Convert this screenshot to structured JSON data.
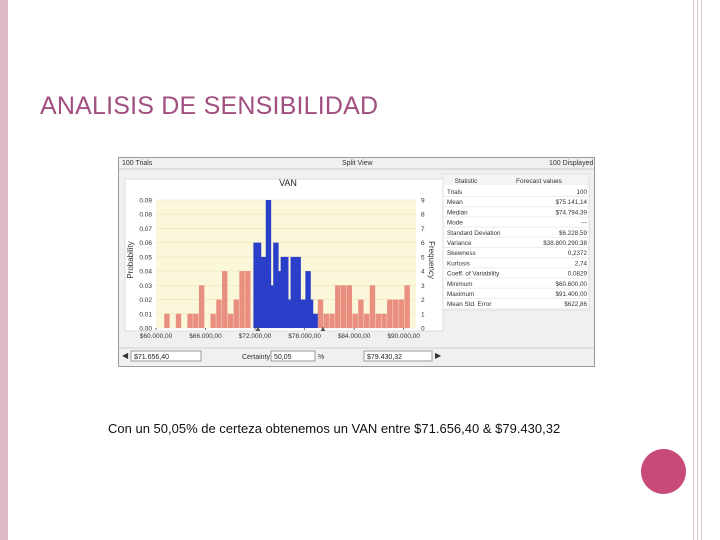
{
  "slide": {
    "title": "ANALISIS DE SENSIBILIDAD",
    "caption": "Con un  50,05%  de certeza obtenemos un VAN entre $71.656,40 & $79.430,32"
  },
  "window": {
    "trials_label": "100 Trials",
    "view_label": "Split View",
    "displayed_label": "100 Displayed",
    "certainty_label": "Certainty",
    "certainty_value": "50,05",
    "percent_sign": "%",
    "left_value": "$71.656,40",
    "right_value": "$79.430,32"
  },
  "stats_table": {
    "headers": [
      "Statistic",
      "Forecast values"
    ],
    "rows": [
      [
        "Trials",
        "100"
      ],
      [
        "Mean",
        "$75.141,14"
      ],
      [
        "Median",
        "$74.794,39"
      ],
      [
        "Mode",
        "---"
      ],
      [
        "Standard Deviation",
        "$6.228,59"
      ],
      [
        "Variance",
        "$38.800.290,38"
      ],
      [
        "Skewness",
        "0,2372"
      ],
      [
        "Kurtosis",
        "2,74"
      ],
      [
        "Coeff. of Variability",
        "0,0829"
      ],
      [
        "Minimum",
        "$60.600,00"
      ],
      [
        "Maximum",
        "$91.400,00"
      ],
      [
        "Mean Std. Error",
        "$622,86"
      ]
    ]
  },
  "chart_data": {
    "type": "bar",
    "title": "VAN",
    "ylabel": "Probability",
    "y2label": "Frequency",
    "ylim": [
      0,
      0.09
    ],
    "y_ticks": [
      "0.00",
      "0.01",
      "0.02",
      "0.03",
      "0.04",
      "0.05",
      "0.06",
      "0.07",
      "0.08",
      "0.09"
    ],
    "y2_ticks": [
      "0",
      "1",
      "2",
      "3",
      "4",
      "5",
      "6",
      "7",
      "8",
      "9"
    ],
    "x_ticks": [
      "$60.000,00",
      "$66.000,00",
      "$72.000,00",
      "$78.000,00",
      "$84.000,00",
      "$90.000,00"
    ],
    "xlim": [
      60000,
      91500
    ],
    "bin_width": 700,
    "certainty_range": [
      71656.4,
      79430.32
    ],
    "grid": true,
    "bins_start": [
      61000,
      62400,
      63800,
      64500,
      65200,
      66600,
      67300,
      68000,
      68700,
      69400,
      70100,
      70800,
      71800,
      72100,
      72400,
      72700,
      73000,
      73300,
      73600,
      73900,
      74200,
      74500,
      74800,
      75100,
      75400,
      75700,
      76000,
      76300,
      76600,
      76900,
      77200,
      77500,
      77800,
      78100,
      78400,
      78700,
      79000,
      79600,
      80300,
      81000,
      81700,
      82400,
      83100,
      83800,
      84500,
      85200,
      85900,
      86600,
      87300,
      88000,
      88700,
      89400,
      90100
    ],
    "values": [
      0.01,
      0.01,
      0.01,
      0.01,
      0.03,
      0.01,
      0.02,
      0.04,
      0.01,
      0.02,
      0.04,
      0.04,
      0.06,
      0.06,
      0.05,
      0.04,
      0.05,
      0.09,
      0.03,
      0.02,
      0.06,
      0.04,
      0.01,
      0.05,
      0.05,
      0.01,
      0.02,
      0.05,
      0.02,
      0.05,
      0.01,
      0.02,
      0.02,
      0.04,
      0.02,
      0.01,
      0.01,
      0.02,
      0.01,
      0.01,
      0.03,
      0.03,
      0.03,
      0.01,
      0.02,
      0.01,
      0.03,
      0.01,
      0.01,
      0.02,
      0.02,
      0.02,
      0.03
    ],
    "colors": {
      "inside": "#2a3fc9",
      "outside": "#e98f80",
      "plot_bg": "#fbf7da",
      "grid": "#ece4b8"
    }
  }
}
